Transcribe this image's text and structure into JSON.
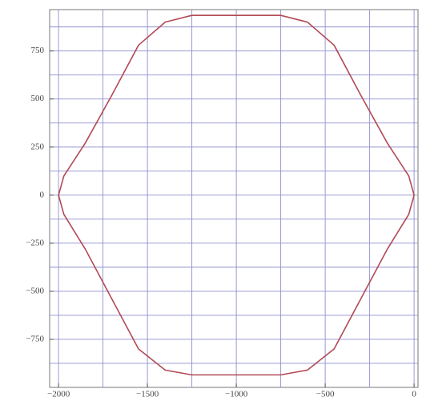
{
  "chart_data": {
    "type": "line",
    "series": [
      {
        "color": "#b24a55",
        "x": [
          -1000,
          -750,
          -600,
          -450,
          -300,
          -150,
          -30,
          0,
          -30,
          -150,
          -300,
          -450,
          -600,
          -750,
          -1000,
          -1250,
          -1400,
          -1550,
          -1700,
          -1850,
          -1970,
          -2000,
          -1970,
          -1850,
          -1700,
          -1550,
          -1400,
          -1250,
          -1000
        ],
        "values": [
          935,
          935,
          900,
          780,
          520,
          270,
          100,
          0,
          -100,
          -280,
          -540,
          -800,
          -910,
          -935,
          -935,
          -935,
          -910,
          -800,
          -540,
          -280,
          -100,
          0,
          100,
          270,
          520,
          780,
          900,
          935,
          935
        ]
      }
    ],
    "xlim": [
      -2050,
      22
    ],
    "ylim": [
      -1000,
      965
    ],
    "xticks": [
      {
        "value": -2000,
        "label": "−2000"
      },
      {
        "value": -1500,
        "label": "−1500"
      },
      {
        "value": -1000,
        "label": "−1000"
      },
      {
        "value": -500,
        "label": "−500"
      },
      0
    ],
    "yticks": [
      {
        "value": -750,
        "label": "−750"
      },
      {
        "value": -500,
        "label": "−500"
      },
      {
        "value": -250,
        "label": "−250"
      },
      0,
      250,
      500,
      750
    ],
    "xgrid": [
      -2000,
      -1750,
      -1500,
      -1250,
      -1000,
      -750,
      -500,
      -250,
      0
    ],
    "ygrid": [
      -875,
      -750,
      -625,
      -500,
      -375,
      -250,
      -125,
      0,
      125,
      250,
      375,
      500,
      625,
      750,
      875
    ],
    "grid": true
  }
}
